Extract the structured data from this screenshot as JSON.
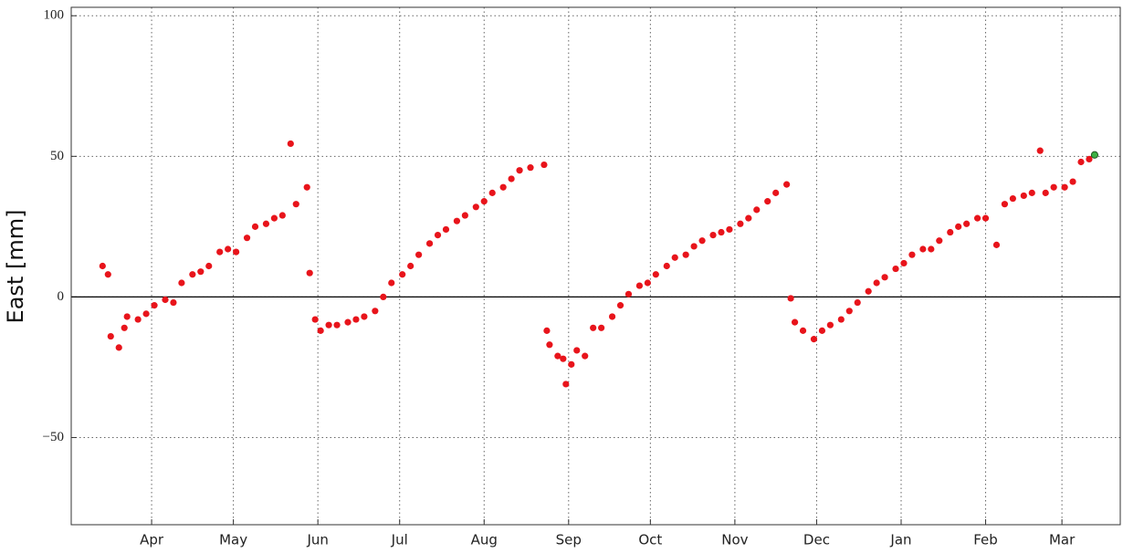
{
  "chart_data": {
    "type": "scatter",
    "y_label": "East [mm]",
    "xlim": [
      -29.5,
      355.4
    ],
    "ylim": [
      -81,
      103
    ],
    "xticks": [
      {
        "value": 0,
        "label": "Apr"
      },
      {
        "value": 30,
        "label": "May"
      },
      {
        "value": 61,
        "label": "Jun"
      },
      {
        "value": 91,
        "label": "Jul"
      },
      {
        "value": 122,
        "label": "Aug"
      },
      {
        "value": 153,
        "label": "Sep"
      },
      {
        "value": 183,
        "label": "Oct"
      },
      {
        "value": 214,
        "label": "Nov"
      },
      {
        "value": 244,
        "label": "Dec"
      },
      {
        "value": 275,
        "label": "Jan"
      },
      {
        "value": 306,
        "label": "Feb"
      },
      {
        "value": 334,
        "label": "Mar"
      }
    ],
    "yticks": [
      {
        "value": -50,
        "label": "−50"
      },
      0,
      50,
      100
    ],
    "grid": true,
    "series": [
      {
        "color": "#e8141b",
        "x": [
          -18,
          -16,
          -15,
          -12,
          -10,
          -9,
          -5,
          -2,
          1,
          5,
          8,
          11,
          15,
          18,
          21,
          25,
          28,
          31,
          35,
          38,
          42,
          45,
          48,
          51,
          53,
          57,
          58,
          60,
          62,
          65,
          68,
          72,
          75,
          78,
          82,
          85,
          88,
          92,
          95,
          98,
          102,
          105,
          108,
          112,
          115,
          119,
          122,
          125,
          129,
          132,
          135,
          139,
          144,
          145,
          146,
          149,
          151,
          152,
          154,
          156,
          159,
          162,
          165,
          169,
          172,
          175,
          179,
          182,
          185,
          189,
          192,
          196,
          199,
          202,
          206,
          209,
          212,
          216,
          219,
          222,
          226,
          229,
          233,
          234.5,
          236,
          239,
          243,
          246,
          249,
          253,
          256,
          259,
          263,
          266,
          269,
          273,
          276,
          279,
          283,
          286,
          289,
          293,
          296,
          299,
          303,
          306,
          310,
          313,
          316,
          320,
          323,
          326,
          328,
          331,
          335,
          338,
          341,
          344
        ],
        "values": [
          11,
          8,
          -14,
          -18,
          -11,
          -7,
          -8,
          -6,
          -3,
          -1,
          -2,
          5,
          8,
          9,
          11,
          16,
          17,
          16,
          21,
          25,
          26,
          28,
          29,
          54.5,
          33,
          39,
          8.5,
          -8,
          -12,
          -10,
          -10,
          -9,
          -8,
          -7,
          -5,
          0,
          5,
          8,
          11,
          15,
          19,
          22,
          24,
          27,
          29,
          32,
          34,
          37,
          39,
          42,
          45,
          46,
          47,
          -12,
          -17,
          -21,
          -22,
          -31,
          -24,
          -19,
          -21,
          -11,
          -11,
          -7,
          -3,
          1,
          4,
          5,
          8,
          11,
          14,
          15,
          18,
          20,
          22,
          23,
          24,
          26,
          28,
          31,
          34,
          37,
          40,
          -0.5,
          -9,
          -12,
          -15,
          -12,
          -10,
          -8,
          -5,
          -2,
          2,
          5,
          7,
          10,
          12,
          15,
          17,
          17,
          20,
          23,
          25,
          26,
          28,
          28,
          18.5,
          33,
          35,
          36,
          37,
          52,
          37,
          39,
          39,
          41,
          48,
          49
        ]
      },
      {
        "color": "#3cb043",
        "x": [
          346
        ],
        "values": [
          50.5
        ]
      }
    ]
  }
}
